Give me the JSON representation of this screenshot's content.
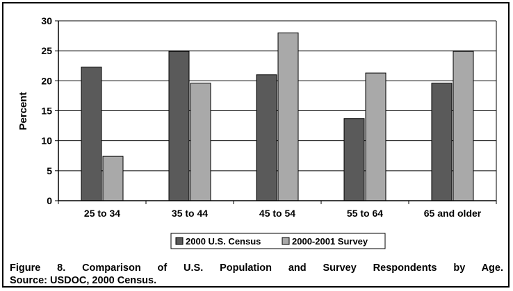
{
  "chart_data": {
    "type": "bar",
    "ylabel": "Percent",
    "xlabel": "",
    "ylim": [
      0,
      30
    ],
    "yticks": [
      0,
      5,
      10,
      15,
      20,
      25,
      30
    ],
    "grid": true,
    "legend_position": "bottom-center",
    "categories": [
      "25 to 34",
      "35 to 44",
      "45 to 54",
      "55 to 64",
      "65 and older"
    ],
    "series": [
      {
        "name": "2000 U.S. Census",
        "color": "#5a5a5a",
        "values": [
          22.3,
          24.9,
          21.0,
          13.7,
          19.6
        ]
      },
      {
        "name": "2000-2001 Survey",
        "color": "#a9a9a9",
        "values": [
          7.4,
          19.6,
          28.0,
          21.3,
          24.9
        ]
      }
    ]
  },
  "caption": {
    "line1": "Figure 8. Comparison of U.S. Population and Survey Respondents by Age.",
    "line2": "Source: USDOC, 2000 Census."
  }
}
